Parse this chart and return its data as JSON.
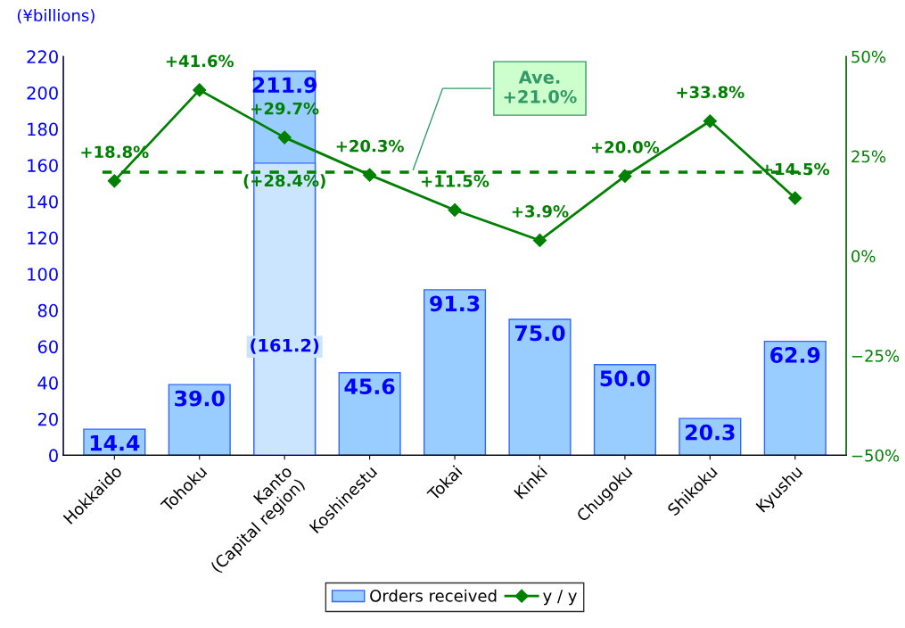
{
  "chart_data": {
    "type": "bar",
    "ylabel": "(¥billions)",
    "categories": [
      "Hokkaido",
      "Tohoku",
      "Kanto\n(Capital region)",
      "Koshinestu",
      "Tokai",
      "Kinki",
      "Chugoku",
      "Shikoku",
      "Kyushu"
    ],
    "series": [
      {
        "name": "Orders received",
        "color": "#99ccff",
        "values": [
          14.4,
          39.0,
          211.9,
          45.6,
          91.3,
          75.0,
          50.0,
          20.3,
          62.9
        ],
        "value_labels": [
          "14.4",
          "39.0",
          "211.9",
          "45.6",
          "91.3",
          "75.0",
          "50.0",
          "20.3",
          "62.9"
        ]
      },
      {
        "color": "#cce5ff",
        "values": [
          null,
          null,
          161.2,
          null,
          null,
          null,
          null,
          null,
          null
        ],
        "value_labels": [
          null,
          null,
          "(161.2)",
          null,
          null,
          null,
          null,
          null,
          null
        ]
      },
      {
        "name": "y / y",
        "type": "line",
        "axis": "y2",
        "color": "#008000",
        "marker": "diamond",
        "values": [
          18.8,
          41.6,
          29.7,
          20.3,
          11.5,
          3.9,
          20.0,
          33.8,
          14.5
        ],
        "value_labels": [
          "+18.8%",
          "+41.6%",
          "+29.7%",
          "+20.3%",
          "+11.5%",
          "+3.9%",
          "+20.0%",
          "+33.8%",
          "+14.5%"
        ]
      }
    ],
    "ylim": [
      0,
      220
    ],
    "yticks": [
      0,
      20,
      40,
      60,
      80,
      100,
      120,
      140,
      160,
      180,
      200,
      220
    ],
    "y2lim": [
      -50,
      50
    ],
    "y2ticks": [
      {
        "value": -50,
        "label": "−50%"
      },
      {
        "value": -25,
        "label": "−25%"
      },
      {
        "value": 0,
        "label": "0%"
      },
      {
        "value": 25,
        "label": "25%"
      },
      {
        "value": 50,
        "label": "50%"
      }
    ],
    "ref_lines": [
      {
        "axis": "y2",
        "value": 21.0,
        "label": "Ave.\n+21.0%",
        "color": "#008000",
        "line_style": "dashed"
      }
    ],
    "annotations": [
      {
        "text": "(+28.4%)",
        "x": "Kanto\n(Capital region)",
        "y": 161.2
      }
    ],
    "legend": "bottom",
    "grid": false
  }
}
